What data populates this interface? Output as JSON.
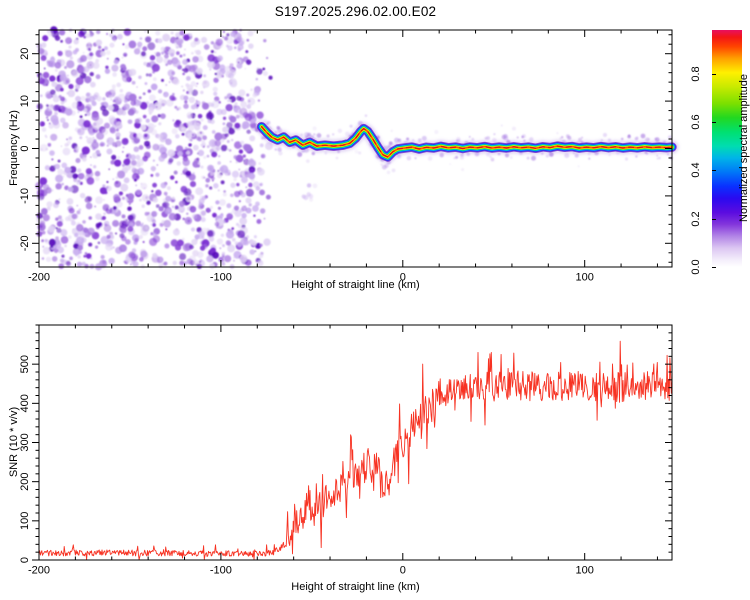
{
  "title": "S197.2025.296.02.00.E02",
  "figure": {
    "background": "#ffffff",
    "frame_color": "#000000"
  },
  "chart_data": [
    {
      "type": "heatmap",
      "title": "S197.2025.296.02.00.E02",
      "xlabel": "Height of straight line (km)",
      "ylabel": "Frequency (Hz)",
      "xlim": [
        -200,
        148
      ],
      "ylim": [
        -25,
        25
      ],
      "x_major_ticks": [
        -200,
        -100,
        0,
        100
      ],
      "x_minor_step": 20,
      "y_major_ticks": [
        20,
        10,
        0,
        -10,
        -20
      ],
      "y_minor_step": 2,
      "grid": false,
      "legend": "none",
      "colorbar": {
        "label": "Normalized spectral amplitude",
        "ticks": [
          0.0,
          0.2,
          0.4,
          0.6,
          0.8
        ],
        "vmin": 0,
        "vmax": 0.98,
        "gradient_stops": [
          [
            0,
            "#ffffff"
          ],
          [
            3,
            "#f4eefb"
          ],
          [
            8,
            "#dcc6f2"
          ],
          [
            13,
            "#b284e6"
          ],
          [
            18,
            "#8336dc"
          ],
          [
            23,
            "#5b0ce0"
          ],
          [
            29,
            "#2a0af0"
          ],
          [
            34,
            "#0a30ff"
          ],
          [
            40,
            "#0077f8"
          ],
          [
            46,
            "#00b4e8"
          ],
          [
            51,
            "#00ddb0"
          ],
          [
            57,
            "#00e070"
          ],
          [
            63,
            "#22d820"
          ],
          [
            69,
            "#7ce000"
          ],
          [
            76,
            "#c8ea00"
          ],
          [
            82,
            "#fff000"
          ],
          [
            88,
            "#ffa000"
          ],
          [
            93,
            "#ff4400"
          ],
          [
            97,
            "#f31515"
          ],
          [
            100,
            "#e81060"
          ]
        ]
      },
      "noise_region": {
        "x_from_km": -200,
        "x_to_km": -76,
        "seed": 42,
        "count": 1500,
        "palette": [
          "#e3d6f5",
          "#c7abef",
          "#a678e0",
          "#7b2fd2",
          "#5a0dbd"
        ],
        "weights": [
          0.26,
          0.26,
          0.22,
          0.16,
          0.1
        ]
      },
      "signal_trace": {
        "points_km_hz": [
          [
            -77.6,
            4.6
          ],
          [
            -74.8,
            3.4
          ],
          [
            -72.1,
            2.4
          ],
          [
            -68.8,
            1.8
          ],
          [
            -65.5,
            2.4
          ],
          [
            -62.2,
            1.3
          ],
          [
            -58.9,
            1.8
          ],
          [
            -55,
            0.7
          ],
          [
            -51.2,
            1.3
          ],
          [
            -47.3,
            0.5
          ],
          [
            -42.9,
            0.7
          ],
          [
            -38,
            0.5
          ],
          [
            -33,
            0.7
          ],
          [
            -29.2,
            1.1
          ],
          [
            -25.9,
            2.2
          ],
          [
            -23.1,
            3.6
          ],
          [
            -21.5,
            4.2
          ],
          [
            -19.3,
            3.6
          ],
          [
            -16.5,
            2
          ],
          [
            -13.8,
            0.3
          ],
          [
            -11,
            -1.3
          ],
          [
            -8.3,
            -1.8
          ],
          [
            -5.5,
            -0.7
          ],
          [
            -2.8,
            -0.1
          ],
          [
            1.1,
            0.1
          ],
          [
            5,
            0.3
          ],
          [
            9,
            -0.1
          ],
          [
            13,
            0.25
          ],
          [
            17,
            0.1
          ],
          [
            21,
            0.45
          ],
          [
            25,
            0.15
          ],
          [
            29,
            0.3
          ],
          [
            33,
            0
          ],
          [
            37,
            0.3
          ],
          [
            41,
            0.15
          ],
          [
            45,
            0.4
          ],
          [
            49,
            0.1
          ],
          [
            53,
            0.3
          ],
          [
            57,
            0.1
          ],
          [
            61,
            0.35
          ],
          [
            65,
            0.15
          ],
          [
            69,
            0.3
          ],
          [
            73,
            0.05
          ],
          [
            77,
            0.35
          ],
          [
            81,
            0.2
          ],
          [
            85,
            0.5
          ],
          [
            89,
            0.25
          ],
          [
            93,
            0.4
          ],
          [
            97,
            0.1
          ],
          [
            101,
            0.3
          ],
          [
            105,
            0.15
          ],
          [
            109,
            0.4
          ],
          [
            113,
            0.2
          ],
          [
            117,
            0.35
          ],
          [
            121,
            0.1
          ],
          [
            125,
            0.3
          ],
          [
            129,
            0.15
          ],
          [
            133,
            0.35
          ],
          [
            137,
            0.2
          ],
          [
            141,
            0.3
          ],
          [
            145,
            0.2
          ],
          [
            148,
            0.3
          ]
        ],
        "layers": [
          {
            "color": "#9a6fdc",
            "width": 13,
            "opacity": 0.3
          },
          {
            "color": "#6a22cc",
            "width": 9.5,
            "opacity": 0.8
          },
          {
            "color": "#2233ee",
            "width": 7.6,
            "opacity": 1
          },
          {
            "color": "#00aaff",
            "width": 6,
            "opacity": 1
          },
          {
            "color": "#00dd66",
            "width": 4.6,
            "opacity": 1
          },
          {
            "color": "#c3ea00",
            "width": 3.3,
            "opacity": 1
          },
          {
            "color": "#ffee00",
            "width": 2.4,
            "opacity": 1
          },
          {
            "color": "#ff5500",
            "width": 1.7,
            "opacity": 1
          },
          {
            "color": "#e01515",
            "width": 1.25,
            "opacity": 1,
            "dash": "5 4"
          }
        ]
      }
    },
    {
      "type": "line",
      "xlabel": "Height of straight line (km)",
      "ylabel": "SNR (10 * v/v)",
      "xlim": [
        -200,
        148
      ],
      "ylim": [
        0,
        600
      ],
      "x_major_ticks": [
        -200,
        -100,
        0,
        100
      ],
      "x_minor_step": 20,
      "y_major_ticks": [
        0,
        100,
        200,
        300,
        400,
        500
      ],
      "y_minor_step": 20,
      "grid": false,
      "legend": "none",
      "line_color": "#f73222",
      "noise_seed": 7,
      "envelope_km_mean_amp": [
        [
          -200,
          18,
          14
        ],
        [
          -150,
          18,
          14
        ],
        [
          -100,
          17,
          13
        ],
        [
          -76,
          16,
          12
        ],
        [
          -68,
          24,
          18
        ],
        [
          -64,
          55,
          40
        ],
        [
          -60,
          90,
          55
        ],
        [
          -55,
          110,
          62
        ],
        [
          -52,
          150,
          100
        ],
        [
          -49,
          115,
          70
        ],
        [
          -44,
          150,
          75
        ],
        [
          -38,
          175,
          80
        ],
        [
          -30,
          205,
          78
        ],
        [
          -22,
          235,
          85
        ],
        [
          -14,
          248,
          90
        ],
        [
          -8,
          165,
          95
        ],
        [
          -4,
          260,
          85
        ],
        [
          0,
          298,
          82
        ],
        [
          5,
          330,
          82
        ],
        [
          10,
          352,
          86
        ],
        [
          15,
          392,
          86
        ],
        [
          20,
          420,
          80
        ],
        [
          25,
          436,
          74
        ],
        [
          40,
          442,
          70
        ],
        [
          60,
          446,
          70
        ],
        [
          80,
          440,
          70
        ],
        [
          100,
          446,
          70
        ],
        [
          120,
          441,
          70
        ],
        [
          148,
          446,
          70
        ]
      ]
    }
  ]
}
